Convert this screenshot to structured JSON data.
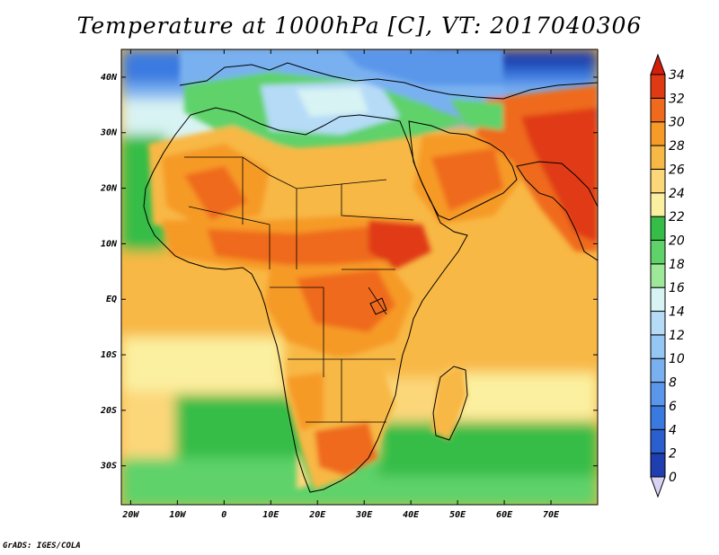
{
  "title": "Temperature at 1000hPa [C], VT: 2017040306",
  "credit": "GrADS: IGES/COLA",
  "map": {
    "lon_range": [
      -22,
      80
    ],
    "lat_range": [
      -37,
      45
    ],
    "x_ticks": [
      {
        "lon": -20,
        "label": "20W"
      },
      {
        "lon": -10,
        "label": "10W"
      },
      {
        "lon": 0,
        "label": "0"
      },
      {
        "lon": 10,
        "label": "10E"
      },
      {
        "lon": 20,
        "label": "20E"
      },
      {
        "lon": 30,
        "label": "30E"
      },
      {
        "lon": 40,
        "label": "40E"
      },
      {
        "lon": 50,
        "label": "50E"
      },
      {
        "lon": 60,
        "label": "60E"
      },
      {
        "lon": 70,
        "label": "70E"
      }
    ],
    "y_ticks": [
      {
        "lat": 40,
        "label": "40N"
      },
      {
        "lat": 30,
        "label": "30N"
      },
      {
        "lat": 20,
        "label": "20N"
      },
      {
        "lat": 10,
        "label": "10N"
      },
      {
        "lat": 0,
        "label": "EQ"
      },
      {
        "lat": -10,
        "label": "10S"
      },
      {
        "lat": -20,
        "label": "20S"
      },
      {
        "lat": -30,
        "label": "30S"
      }
    ]
  },
  "colorbar": {
    "levels": [
      {
        "label": "0",
        "color": "#1a1a7a"
      },
      {
        "label": "2",
        "color": "#1f3fb0"
      },
      {
        "label": "4",
        "color": "#2b5fd0"
      },
      {
        "label": "6",
        "color": "#3a7ae0"
      },
      {
        "label": "8",
        "color": "#5a97ea"
      },
      {
        "label": "10",
        "color": "#79b0f0"
      },
      {
        "label": "12",
        "color": "#96c6f4"
      },
      {
        "label": "14",
        "color": "#b5dbf7"
      },
      {
        "label": "16",
        "color": "#d8f3f3"
      },
      {
        "label": "18",
        "color": "#9ee89a"
      },
      {
        "label": "20",
        "color": "#5fd26a"
      },
      {
        "label": "22",
        "color": "#36bd47"
      },
      {
        "label": "24",
        "color": "#fbf0a0"
      },
      {
        "label": "26",
        "color": "#fcd77a"
      },
      {
        "label": "28",
        "color": "#f8b845"
      },
      {
        "label": "30",
        "color": "#f69a28"
      },
      {
        "label": "32",
        "color": "#ef6a1c"
      },
      {
        "label": "34",
        "color": "#e03a14"
      }
    ],
    "top_color": "#d31e0c",
    "bottom_color": "#d9d2f5"
  },
  "colors": {
    "ocean_warm": "#f8b845",
    "ocean_mid": "#fcd77a",
    "ocean_cool": "#5fd26a",
    "coast": "#000000"
  }
}
